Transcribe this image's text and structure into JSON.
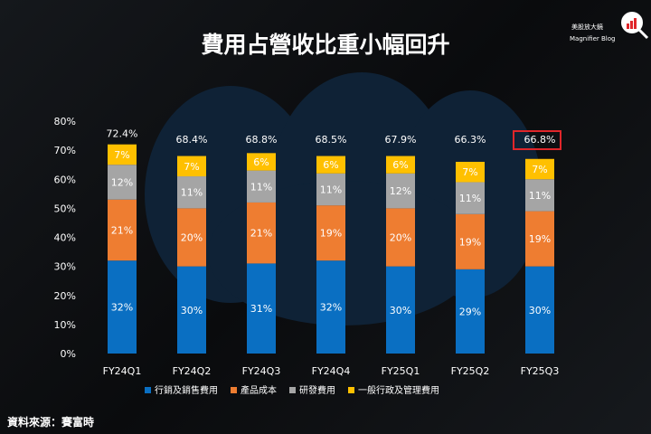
{
  "title": "費用占營收比重小幅回升",
  "logo": {
    "cn": "美股放大鏡",
    "en": "Magnifier Blog",
    "watermark": "salesforce"
  },
  "source": "資料來源：賽富時",
  "colors": {
    "sales": "#0a6fc2",
    "cost": "#ee7d31",
    "rd": "#a5a5a5",
    "admin": "#ffc000"
  },
  "highlight": "FY25Q3",
  "chart_data": {
    "type": "bar",
    "stacked": true,
    "categories": [
      "FY24Q1",
      "FY24Q2",
      "FY24Q3",
      "FY24Q4",
      "FY25Q1",
      "FY25Q2",
      "FY25Q3"
    ],
    "series": [
      {
        "name": "行銷及銷售費用",
        "values": [
          32,
          30,
          31,
          32,
          30,
          29,
          30
        ],
        "labels": [
          "32%",
          "30%",
          "31%",
          "32%",
          "30%",
          "29%",
          "30%"
        ]
      },
      {
        "name": "產品成本",
        "values": [
          21,
          20,
          21,
          19,
          20,
          19,
          19
        ],
        "labels": [
          "21%",
          "20%",
          "21%",
          "19%",
          "20%",
          "19%",
          "19%"
        ]
      },
      {
        "name": "研發費用",
        "values": [
          12,
          11,
          11,
          11,
          12,
          11,
          11
        ],
        "labels": [
          "12%",
          "11%",
          "11%",
          "11%",
          "12%",
          "11%",
          "11%"
        ]
      },
      {
        "name": "一般行政及管理費用",
        "values": [
          7,
          7,
          6,
          6,
          6,
          7,
          7
        ],
        "labels": [
          "7%",
          "7%",
          "6%",
          "6%",
          "6%",
          "7%",
          "7%"
        ]
      }
    ],
    "totals": [
      "72.4%",
      "68.4%",
      "68.8%",
      "68.5%",
      "67.9%",
      "66.3%",
      "66.8%"
    ],
    "total_values": [
      72.4,
      68.4,
      68.8,
      68.5,
      67.9,
      66.3,
      66.8
    ],
    "yticks": [
      "0%",
      "10%",
      "20%",
      "30%",
      "40%",
      "50%",
      "60%",
      "70%",
      "80%"
    ],
    "ylim": [
      0,
      80
    ],
    "grid": false,
    "legend": "bottom"
  }
}
